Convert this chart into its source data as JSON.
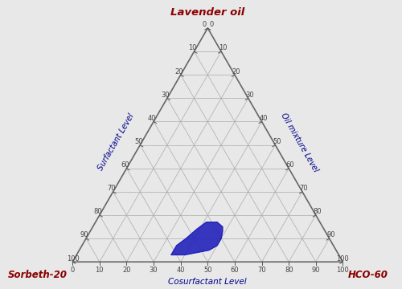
{
  "corner_labels": {
    "top": "Lavender oil",
    "bottom_left": "Sorbeth-20",
    "bottom_right": "HCO-60"
  },
  "axis_labels": {
    "left": "Surfactant Level",
    "right": "Oil mixture Level",
    "bottom": "Cosurfactant Level"
  },
  "title_color": "#8B0000",
  "corner_label_color": "#8B0000",
  "axis_label_color": "#00008B",
  "tick_label_color": "#444444",
  "grid_color": "#AAAAAA",
  "background_color": "#E8E8E8",
  "triangle_color": "#666666",
  "region_color": "#2222BB",
  "region_alpha": 0.9,
  "region_points_ternary": [
    [
      3,
      62,
      35
    ],
    [
      3,
      57,
      40
    ],
    [
      4,
      52,
      44
    ],
    [
      5,
      47,
      48
    ],
    [
      7,
      43,
      50
    ],
    [
      10,
      40,
      50
    ],
    [
      13,
      38,
      49
    ],
    [
      15,
      37,
      48
    ],
    [
      17,
      38,
      45
    ],
    [
      17,
      42,
      41
    ],
    [
      14,
      47,
      39
    ],
    [
      10,
      53,
      37
    ],
    [
      7,
      58,
      35
    ],
    [
      4,
      61,
      35
    ],
    [
      3,
      62,
      35
    ]
  ],
  "tick_values": [
    0,
    10,
    20,
    30,
    40,
    50,
    60,
    70,
    80,
    90,
    100
  ],
  "left_ticks_inside": true,
  "right_ticks_inside": true
}
